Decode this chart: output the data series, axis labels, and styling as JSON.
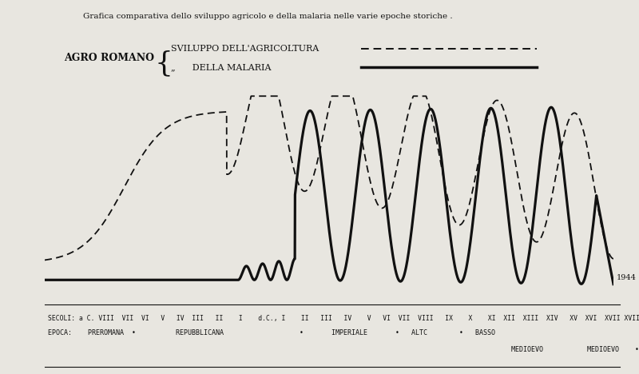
{
  "title": "Grafica comparativa dello sviluppo agricolo e della malaria nelle varie epoche storiche .",
  "title_fontsize": 7.5,
  "legend_label_agro": "AGRO ROMANO",
  "legend_label_agri": "SVILUPPO DELL'AGRICOLTURA",
  "legend_label_mal": "DELLA MALARIA",
  "year_label": "1944",
  "background_color": "#e8e6e0",
  "line_color": "#111111",
  "figsize": [
    8.0,
    4.68
  ],
  "dpi": 100
}
